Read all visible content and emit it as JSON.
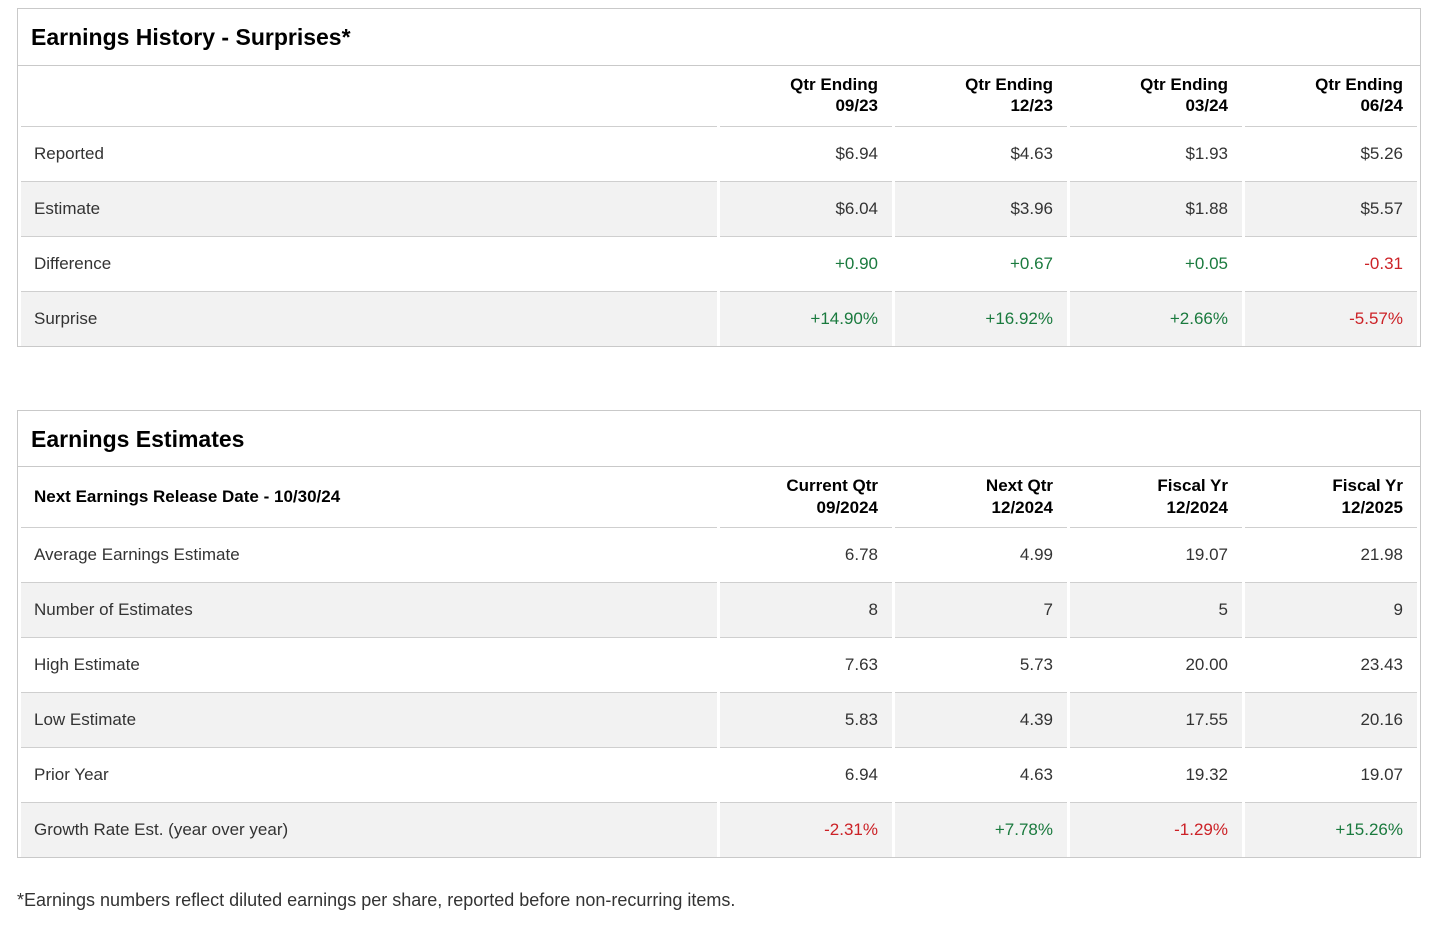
{
  "colors": {
    "positive": "#1a7a3e",
    "negative": "#cc2227",
    "border": "#c9c9c9",
    "row_stripe": "#f2f2f2",
    "text": "#333333",
    "heading": "#000000"
  },
  "history": {
    "title": "Earnings History - Surprises*",
    "corner_header": "",
    "columns": [
      "Qtr Ending\n09/23",
      "Qtr Ending\n12/23",
      "Qtr Ending\n03/24",
      "Qtr Ending\n06/24"
    ],
    "rows": [
      {
        "label": "Reported",
        "values": [
          "$6.94",
          "$4.63",
          "$1.93",
          "$5.26"
        ],
        "colored": false
      },
      {
        "label": "Estimate",
        "values": [
          "$6.04",
          "$3.96",
          "$1.88",
          "$5.57"
        ],
        "colored": false
      },
      {
        "label": "Difference",
        "values": [
          "+0.90",
          "+0.67",
          "+0.05",
          "-0.31"
        ],
        "colored": true
      },
      {
        "label": "Surprise",
        "values": [
          "+14.90%",
          "+16.92%",
          "+2.66%",
          "-5.57%"
        ],
        "colored": true
      }
    ]
  },
  "estimates": {
    "title": "Earnings Estimates",
    "corner_header": "Next Earnings Release Date - 10/30/24",
    "columns": [
      "Current Qtr\n09/2024",
      "Next Qtr\n12/2024",
      "Fiscal Yr\n12/2024",
      "Fiscal Yr\n12/2025"
    ],
    "rows": [
      {
        "label": "Average Earnings Estimate",
        "values": [
          "6.78",
          "4.99",
          "19.07",
          "21.98"
        ],
        "colored": false
      },
      {
        "label": "Number of Estimates",
        "values": [
          "8",
          "7",
          "5",
          "9"
        ],
        "colored": false
      },
      {
        "label": "High Estimate",
        "values": [
          "7.63",
          "5.73",
          "20.00",
          "23.43"
        ],
        "colored": false
      },
      {
        "label": "Low Estimate",
        "values": [
          "5.83",
          "4.39",
          "17.55",
          "20.16"
        ],
        "colored": false
      },
      {
        "label": "Prior Year",
        "values": [
          "6.94",
          "4.63",
          "19.32",
          "19.07"
        ],
        "colored": false
      },
      {
        "label": "Growth Rate Est. (year over year)",
        "values": [
          "-2.31%",
          "+7.78%",
          "-1.29%",
          "+15.26%"
        ],
        "colored": true
      }
    ]
  },
  "footnote": "*Earnings numbers reflect diluted earnings per share, reported before non-recurring items."
}
